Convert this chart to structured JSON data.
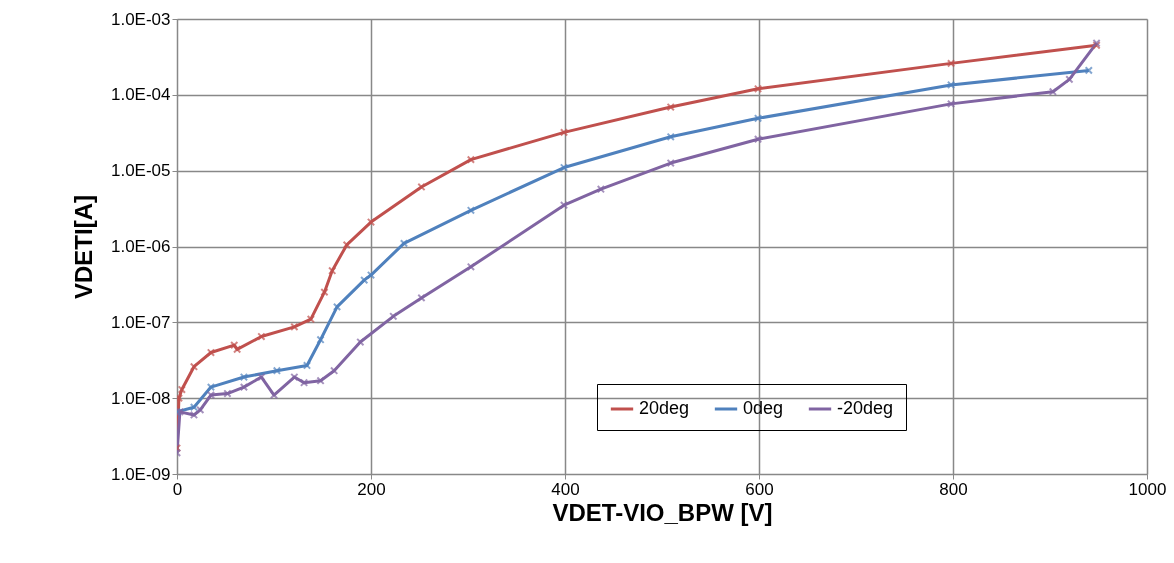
{
  "chart_data": {
    "type": "line",
    "xlabel": "VDET-VIO_BPW  [V]",
    "ylabel": "VDETI[A]",
    "log": "y",
    "grid": true,
    "legend": "bottom right",
    "marker": "cross",
    "line_style": "solid",
    "xlim": [
      0,
      1000
    ],
    "xticks": [
      0,
      200,
      400,
      600,
      800,
      1000
    ],
    "ylim": [
      1e-09,
      0.001
    ],
    "yticks": [
      {
        "value": 1e-09,
        "label": "1.0E-09"
      },
      {
        "value": 1e-08,
        "label": "1.0E-08"
      },
      {
        "value": 1e-07,
        "label": "1.0E-07"
      },
      {
        "value": 1e-06,
        "label": "1.0E-06"
      },
      {
        "value": 1e-05,
        "label": "1.0E-05"
      },
      {
        "value": 0.0001,
        "label": "1.0E-04"
      },
      {
        "value": 0.001,
        "label": "1.0E-03"
      }
    ],
    "series": [
      {
        "name": "20deg",
        "color": "#c0504d",
        "x": [
          0,
          2,
          5,
          17.5,
          35,
          59,
          62,
          87,
          121,
          138,
          152,
          160,
          175,
          200,
          252,
          303,
          399,
          509,
          599,
          798,
          948
        ],
        "values": [
          2.2e-09,
          1e-08,
          1.3e-08,
          2.6e-08,
          4e-08,
          5e-08,
          4.4e-08,
          6.5e-08,
          8.7e-08,
          1.1e-07,
          2.5e-07,
          4.8e-07,
          1.05e-06,
          2.1e-06,
          6.1e-06,
          1.4e-05,
          3.2e-05,
          6.9e-05,
          0.00012,
          0.00026,
          0.00045
        ]
      },
      {
        "name": "0deg",
        "color": "#4f81bd",
        "x": [
          0,
          17.5,
          35,
          69,
          103,
          134,
          148,
          165,
          193,
          200,
          234,
          303,
          399,
          509,
          599,
          798,
          940
        ],
        "values": [
          6.6e-09,
          7.6e-09,
          1.4e-08,
          1.9e-08,
          2.3e-08,
          2.7e-08,
          5.9e-08,
          1.6e-07,
          3.6e-07,
          4.2e-07,
          1.1e-06,
          3e-06,
          1.1e-05,
          2.8e-05,
          4.9e-05,
          0.000135,
          0.00021
        ]
      },
      {
        "name": "-20deg",
        "color": "#8064a2",
        "x": [
          0,
          3,
          17.5,
          24,
          35,
          52,
          69,
          87,
          100,
          121,
          131,
          148,
          162,
          189,
          223,
          252,
          303,
          399,
          437,
          509,
          599,
          798,
          903,
          920,
          948
        ],
        "values": [
          1.9e-09,
          6.6e-09,
          6e-09,
          7e-09,
          1.1e-08,
          1.15e-08,
          1.4e-08,
          1.9e-08,
          1.1e-08,
          1.9e-08,
          1.6e-08,
          1.7e-08,
          2.3e-08,
          5.5e-08,
          1.2e-07,
          2.1e-07,
          5.4e-07,
          3.5e-06,
          5.7e-06,
          1.26e-05,
          2.6e-05,
          7.6e-05,
          0.00011,
          0.00016,
          0.00048
        ]
      }
    ]
  }
}
